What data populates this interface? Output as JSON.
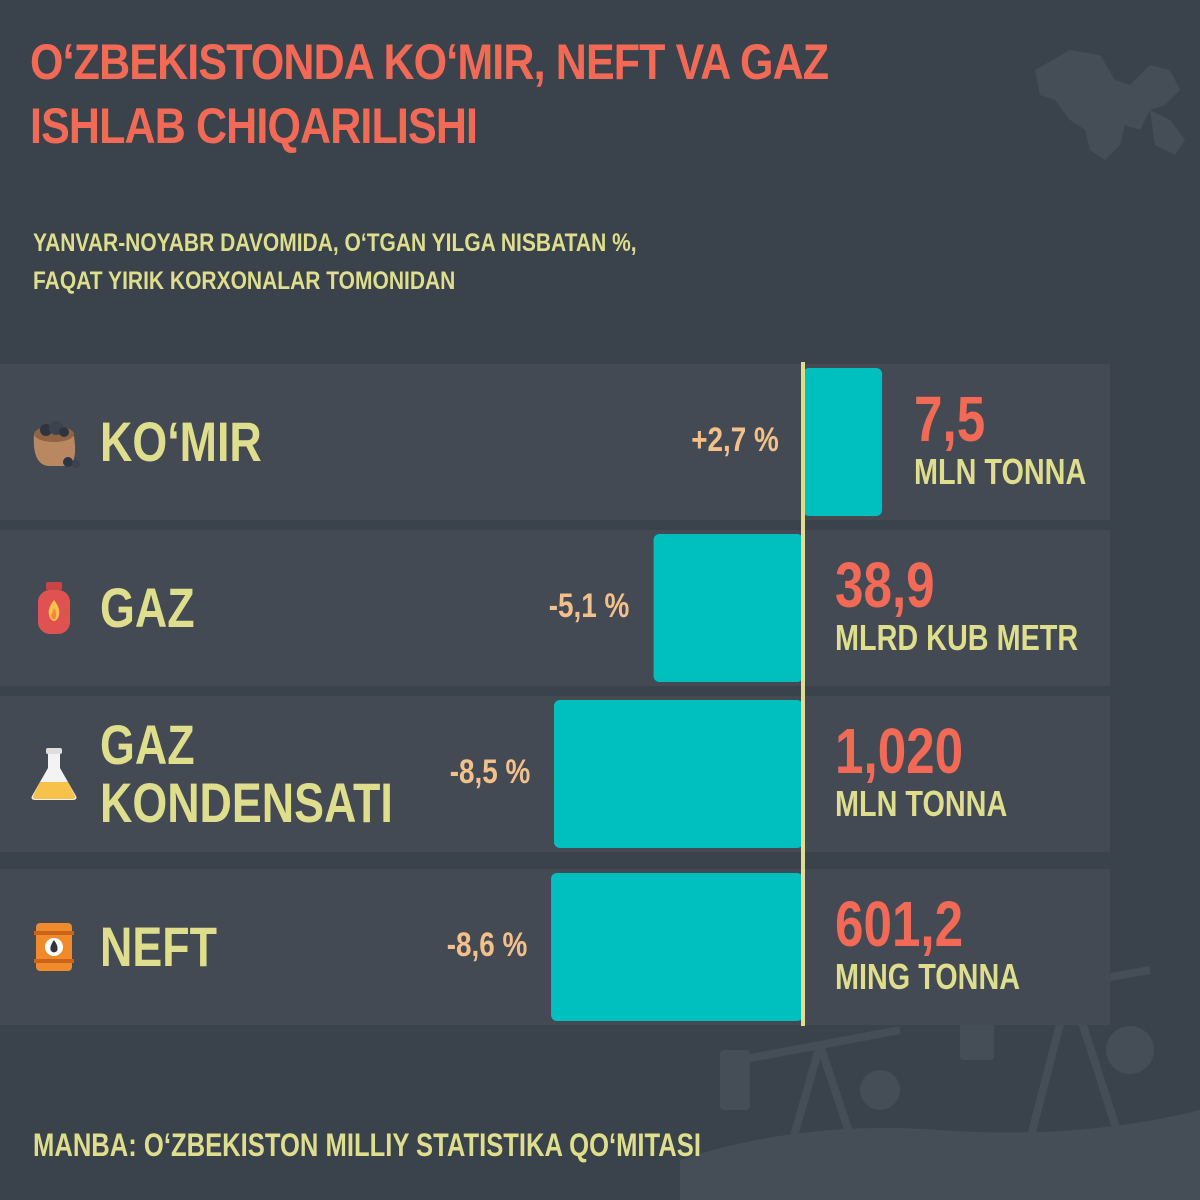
{
  "header": {
    "title": "O‘ZBEKISTONDA KO‘MIR, NEFT VA GAZ ISHLAB CHIQARILISHI",
    "subtitle_line1": "YANVAR-NOYABR DAVOMIDA, O‘TGAN YILGA NISBATAN %,",
    "subtitle_line2": "FAQAT YIRIK KORXONALAR TOMONIDAN"
  },
  "footer": {
    "source": "MANBA: O‘ZBEKISTON MILLIY STATISTIKA QO‘MITASI"
  },
  "colors": {
    "background": "#3a424c",
    "row_band": "#434a54",
    "bar": "#00bfbf",
    "axis": "#dede8c",
    "title": "#f26a56",
    "label": "#dede8c",
    "percent": "#f4c08a",
    "value": "#f26a56"
  },
  "icons": [
    "coal-sack-icon",
    "gas-cylinder-icon",
    "flask-icon",
    "oil-barrel-icon"
  ],
  "chart_data": {
    "type": "bar",
    "orientation": "horizontal",
    "baseline": 0,
    "categories": [
      "KO‘MIR",
      "GAZ",
      "GAZ KONDENSATI",
      "NEFT"
    ],
    "category_lines": [
      [
        "KO‘MIR"
      ],
      [
        "GAZ"
      ],
      [
        "GAZ",
        "KONDENSATI"
      ],
      [
        "NEFT"
      ]
    ],
    "values": [
      2.7,
      -5.1,
      -8.5,
      -8.6
    ],
    "value_labels": [
      "+2,7 %",
      "-5,1 %",
      "-8,5 %",
      "-8,6 %"
    ],
    "amounts": [
      "7,5",
      "38,9",
      "1,020",
      "601,2"
    ],
    "units": [
      "MLN TONNA",
      "MLRD KUB METR",
      "MLN TONNA",
      "MING TONNA"
    ]
  }
}
